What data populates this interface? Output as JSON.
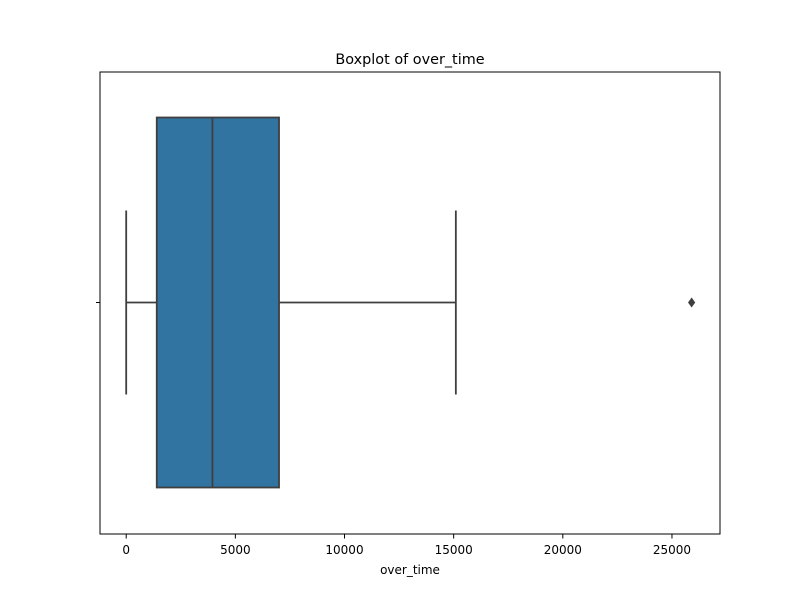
{
  "chart_data": {
    "type": "boxplot",
    "title": "Boxplot of over_time",
    "xlabel": "over_time",
    "ylabel": "",
    "orientation": "horizontal",
    "xlim": [
      -1200,
      27200
    ],
    "xticks": [
      0,
      5000,
      10000,
      15000,
      20000,
      25000
    ],
    "xtick_labels": [
      "0",
      "5000",
      "10000",
      "15000",
      "20000",
      "25000"
    ],
    "grid": false,
    "box": {
      "whisker_low": 0,
      "q1": 1400,
      "median": 3950,
      "q3": 7000,
      "whisker_high": 15100,
      "outliers": [
        25900
      ]
    },
    "colors": {
      "box_fill": "#3274a1",
      "lines": "#3f3f3f",
      "axes": "#000000"
    }
  }
}
